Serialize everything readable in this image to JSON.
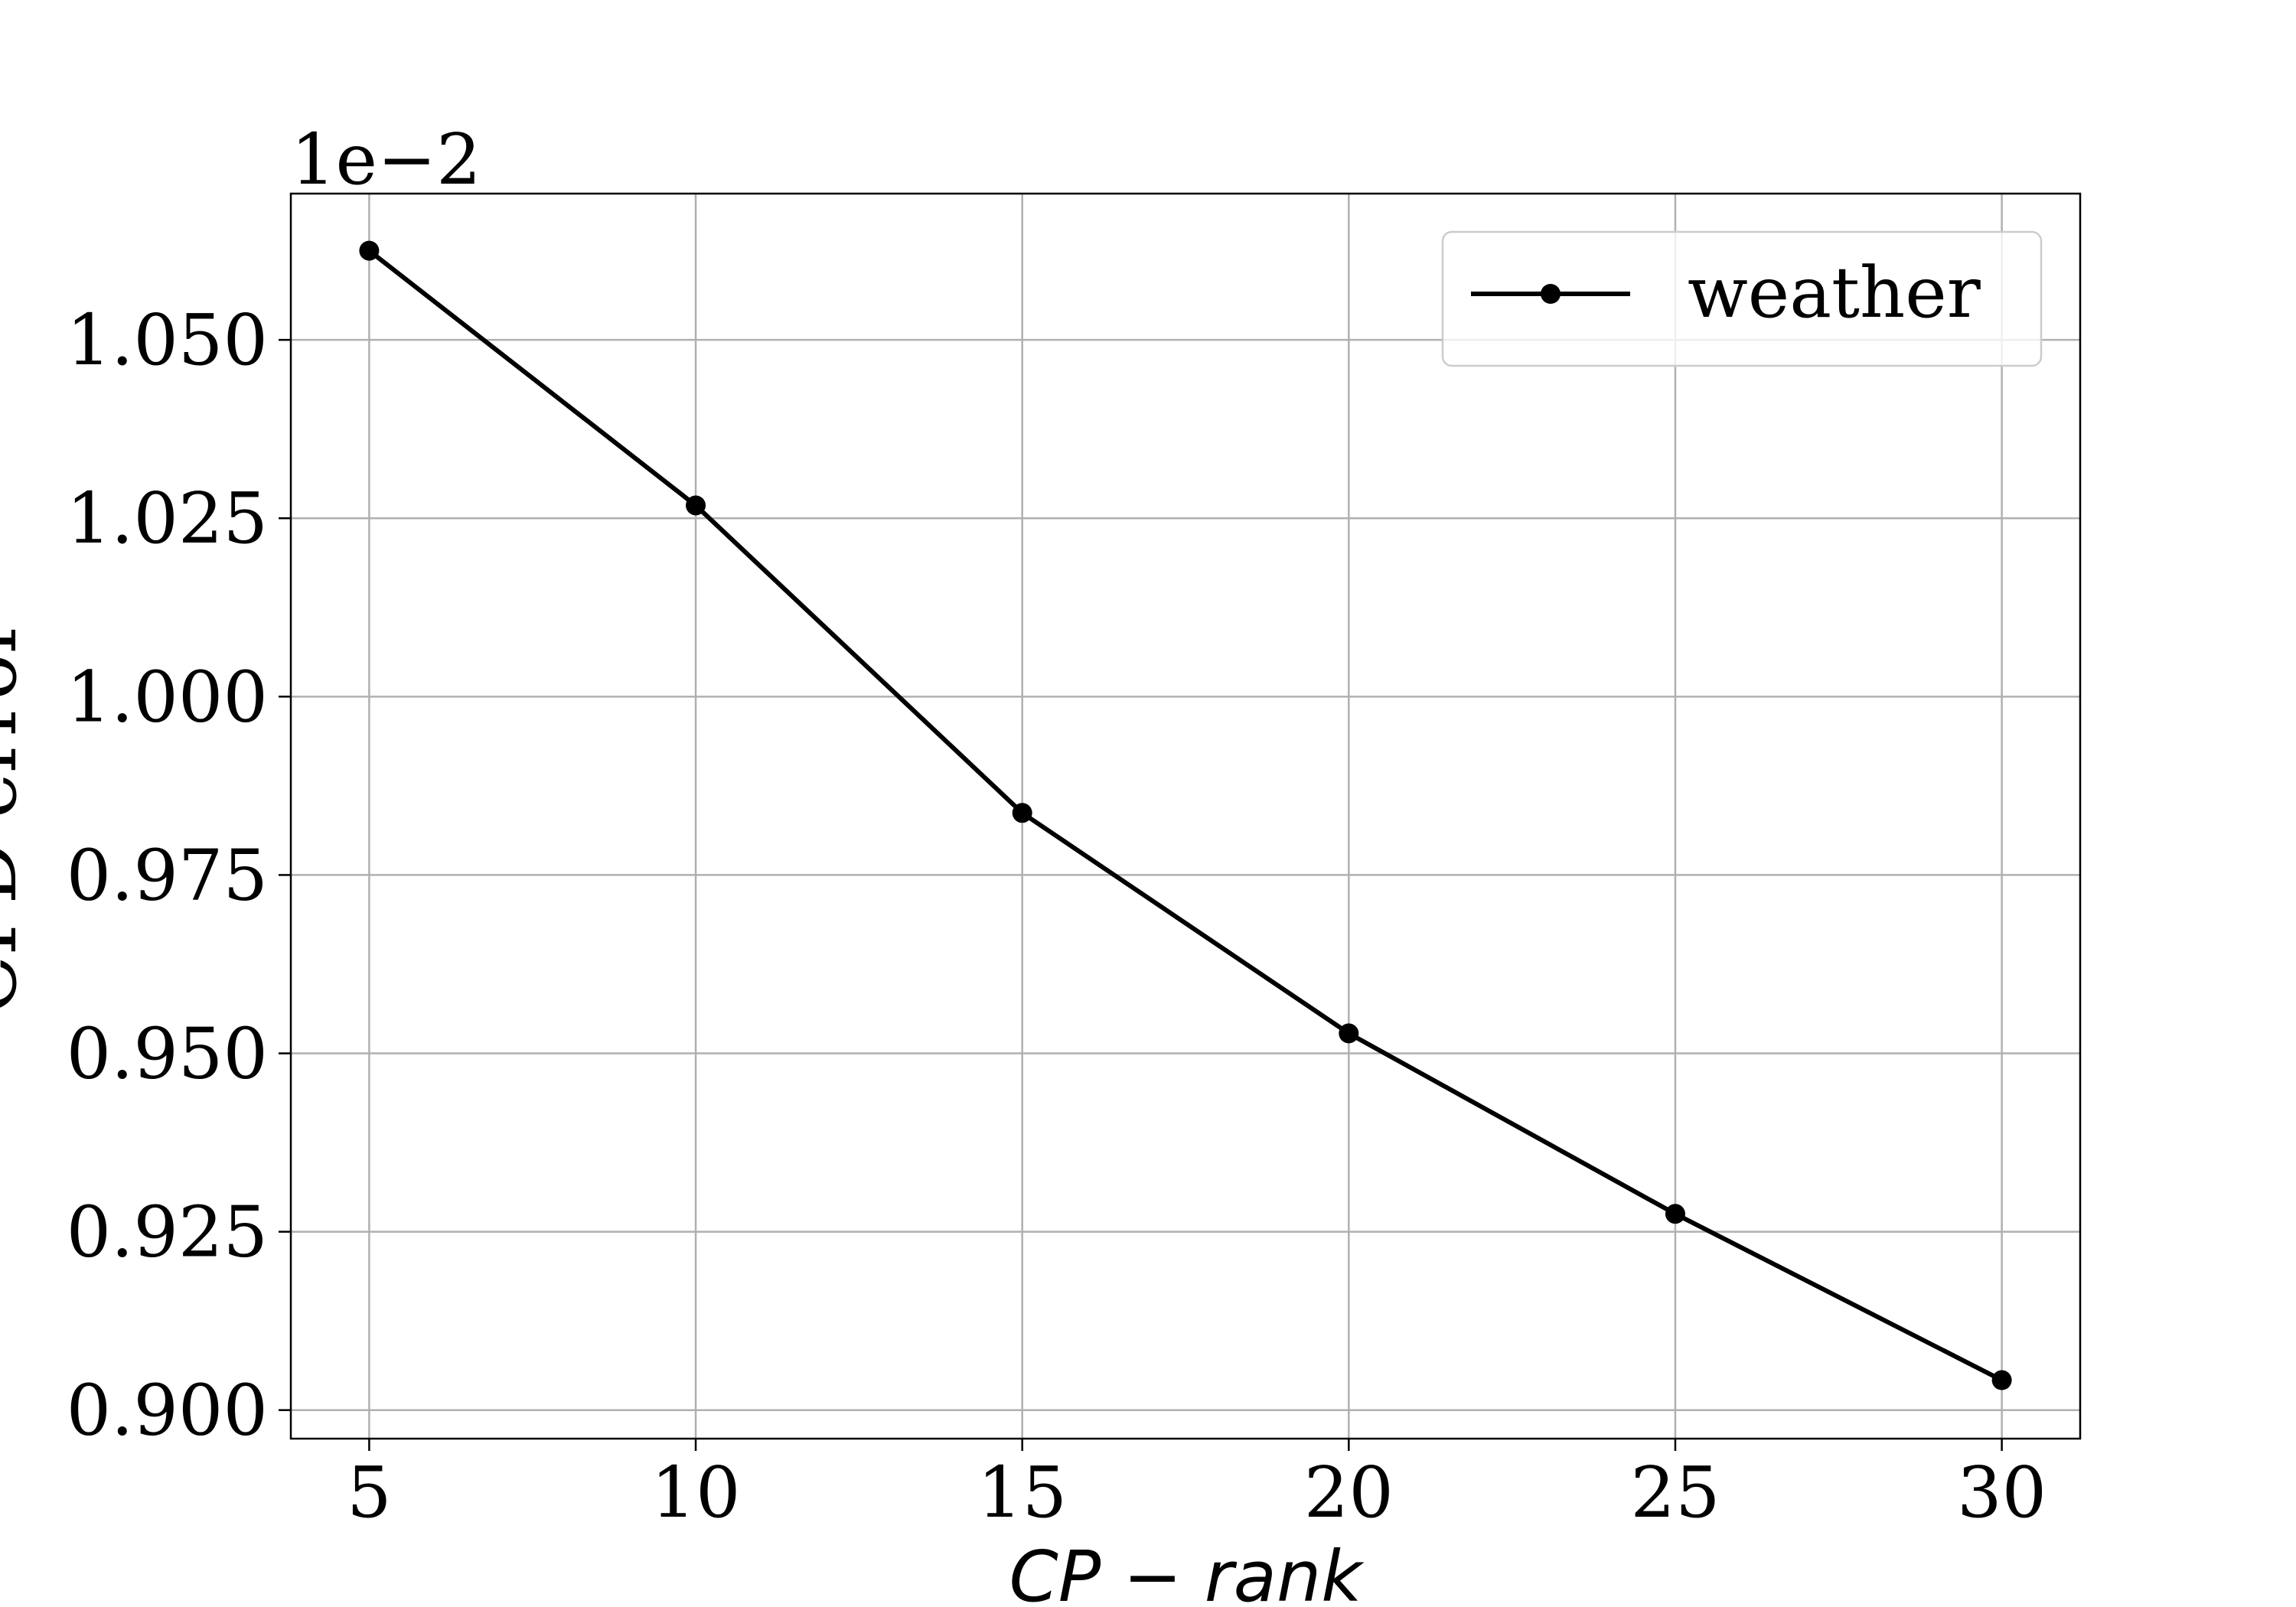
{
  "chart_data": {
    "type": "line",
    "title": "",
    "xlabel": "CP − rank",
    "ylabel": "CPD error",
    "offset_label": "1e−2",
    "x": [
      5,
      10,
      15,
      20,
      25,
      30
    ],
    "x_ticks": [
      "5",
      "10",
      "15",
      "20",
      "25",
      "30"
    ],
    "y_ticks": [
      {
        "value": 1.05,
        "label": "1.050"
      },
      {
        "value": 1.025,
        "label": "1.025"
      },
      {
        "value": 1.0,
        "label": "1.000"
      },
      {
        "value": 0.975,
        "label": "0.975"
      },
      {
        "value": 0.95,
        "label": "0.950"
      },
      {
        "value": 0.925,
        "label": "0.925"
      },
      {
        "value": 0.9,
        "label": "0.900"
      }
    ],
    "xlim": [
      3.8,
      31.2
    ],
    "ylim": [
      0.896,
      1.0705
    ],
    "grid": true,
    "legend_position": "top-right",
    "series": [
      {
        "name": "weather",
        "color": "#000000",
        "marker": "circle",
        "values": [
          1.0625,
          1.0268,
          0.9837,
          0.9528,
          0.9275,
          0.9042
        ]
      }
    ]
  }
}
